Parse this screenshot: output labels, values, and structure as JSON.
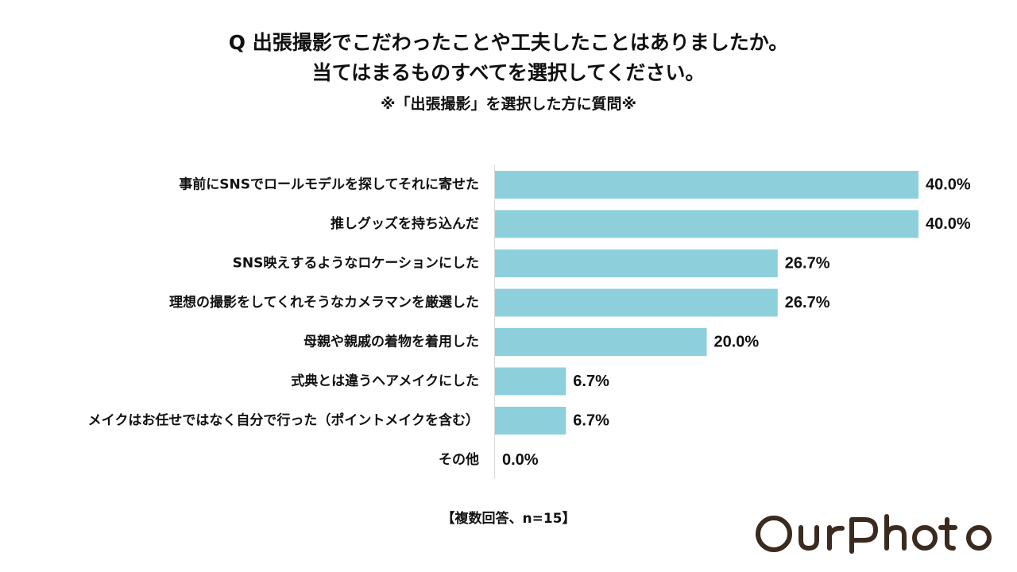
{
  "chart_data": {
    "type": "bar",
    "orientation": "horizontal",
    "title": "Q 出張撮影でこだわったことや工夫したことはありましたか。",
    "title_line2": "当てはまるものすべてを選択してください。",
    "subtitle": "※「出張撮影」を選択した方に質問※",
    "categories": [
      "事前にSNSでロールモデルを探してそれに寄せた",
      "推しグッズを持ち込んだ",
      "SNS映えするようなロケーションにした",
      "理想の撮影をしてくれそうなカメラマンを厳選した",
      "母親や親戚の着物を着用した",
      "式典とは違うヘアメイクにした",
      "メイクはお任せではなく自分で行った（ポイントメイクを含む）",
      "その他"
    ],
    "values": [
      40.0,
      40.0,
      26.7,
      26.7,
      20.0,
      6.7,
      6.7,
      0.0
    ],
    "value_labels": [
      "40.0%",
      "40.0%",
      "26.7%",
      "26.7%",
      "20.0%",
      "6.7%",
      "6.7%",
      "0.0%"
    ],
    "unit": "%",
    "xlim": [
      0,
      40
    ],
    "grid": false,
    "bar_color": "#8dd0dc",
    "footnote": "【複数回答、n=15】"
  },
  "logo": {
    "text": "OurPhoto",
    "color": "#3b2a1f"
  }
}
